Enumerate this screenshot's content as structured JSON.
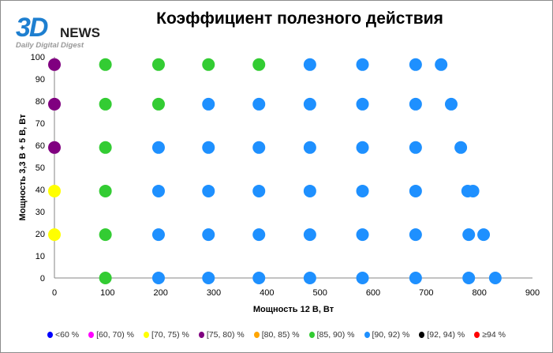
{
  "logo": {
    "brand": "3D",
    "news": "NEWS",
    "tagline": "Daily Digital Digest"
  },
  "chart_data": {
    "type": "scatter",
    "title": "Коэффициент полезного действия",
    "xlabel": "Мощность  12 В, Вт",
    "ylabel": "Мощность  3,3 В + 5 В, Вт",
    "xlim": [
      0,
      900
    ],
    "ylim": [
      0,
      100
    ],
    "xticks": [
      0,
      100,
      200,
      300,
      400,
      500,
      600,
      700,
      800,
      900
    ],
    "yticks": [
      0,
      10,
      20,
      30,
      40,
      50,
      60,
      70,
      80,
      90,
      100
    ],
    "legend_position": "bottom",
    "categories": [
      {
        "label": "<60 %",
        "color": "#0000ff"
      },
      {
        "label": "[60, 70) %",
        "color": "#ff00ff"
      },
      {
        "label": "[70, 75) %",
        "color": "#ffff00"
      },
      {
        "label": "[75, 80) %",
        "color": "#800080"
      },
      {
        "label": "[80, 85) %",
        "color": "#ffa500"
      },
      {
        "label": "[85, 90) %",
        "color": "#33cc33"
      },
      {
        "label": "[90, 92) %",
        "color": "#1e90ff"
      },
      {
        "label": "[92, 94) %",
        "color": "#000000"
      },
      {
        "label": "≥94 %",
        "color": "#ff0000"
      }
    ],
    "points": [
      [
        96,
        0,
        5
      ],
      [
        196,
        0,
        6
      ],
      [
        290,
        0,
        6
      ],
      [
        385,
        0,
        6
      ],
      [
        481,
        0,
        6
      ],
      [
        580,
        0,
        6
      ],
      [
        680,
        0,
        6
      ],
      [
        780,
        0,
        6
      ],
      [
        830,
        0,
        6
      ],
      [
        0,
        19.6,
        2
      ],
      [
        96,
        19.6,
        5
      ],
      [
        196,
        19.6,
        6
      ],
      [
        290,
        19.6,
        6
      ],
      [
        385,
        19.6,
        6
      ],
      [
        481,
        19.6,
        6
      ],
      [
        580,
        19.6,
        6
      ],
      [
        680,
        19.6,
        6
      ],
      [
        780,
        19.6,
        6
      ],
      [
        808,
        19.6,
        6
      ],
      [
        0,
        39.3,
        2
      ],
      [
        96,
        39.3,
        5
      ],
      [
        196,
        39.3,
        6
      ],
      [
        290,
        39.3,
        6
      ],
      [
        385,
        39.3,
        6
      ],
      [
        481,
        39.3,
        6
      ],
      [
        580,
        39.3,
        6
      ],
      [
        680,
        39.3,
        6
      ],
      [
        778,
        39.3,
        6
      ],
      [
        788,
        39.3,
        6
      ],
      [
        0,
        59,
        3
      ],
      [
        96,
        59,
        5
      ],
      [
        196,
        59,
        6
      ],
      [
        290,
        59,
        6
      ],
      [
        385,
        59,
        6
      ],
      [
        481,
        59,
        6
      ],
      [
        580,
        59,
        6
      ],
      [
        680,
        59,
        6
      ],
      [
        765,
        59,
        6
      ],
      [
        0,
        78.6,
        3
      ],
      [
        96,
        78.6,
        5
      ],
      [
        196,
        78.6,
        5
      ],
      [
        290,
        78.6,
        6
      ],
      [
        385,
        78.6,
        6
      ],
      [
        481,
        78.6,
        6
      ],
      [
        580,
        78.6,
        6
      ],
      [
        680,
        78.6,
        6
      ],
      [
        747,
        78.6,
        6
      ],
      [
        0,
        96.5,
        3
      ],
      [
        96,
        96.5,
        5
      ],
      [
        196,
        96.5,
        5
      ],
      [
        290,
        96.5,
        5
      ],
      [
        385,
        96.5,
        5
      ],
      [
        481,
        96.5,
        6
      ],
      [
        580,
        96.5,
        6
      ],
      [
        680,
        96.5,
        6
      ],
      [
        728,
        96.5,
        6
      ]
    ]
  }
}
